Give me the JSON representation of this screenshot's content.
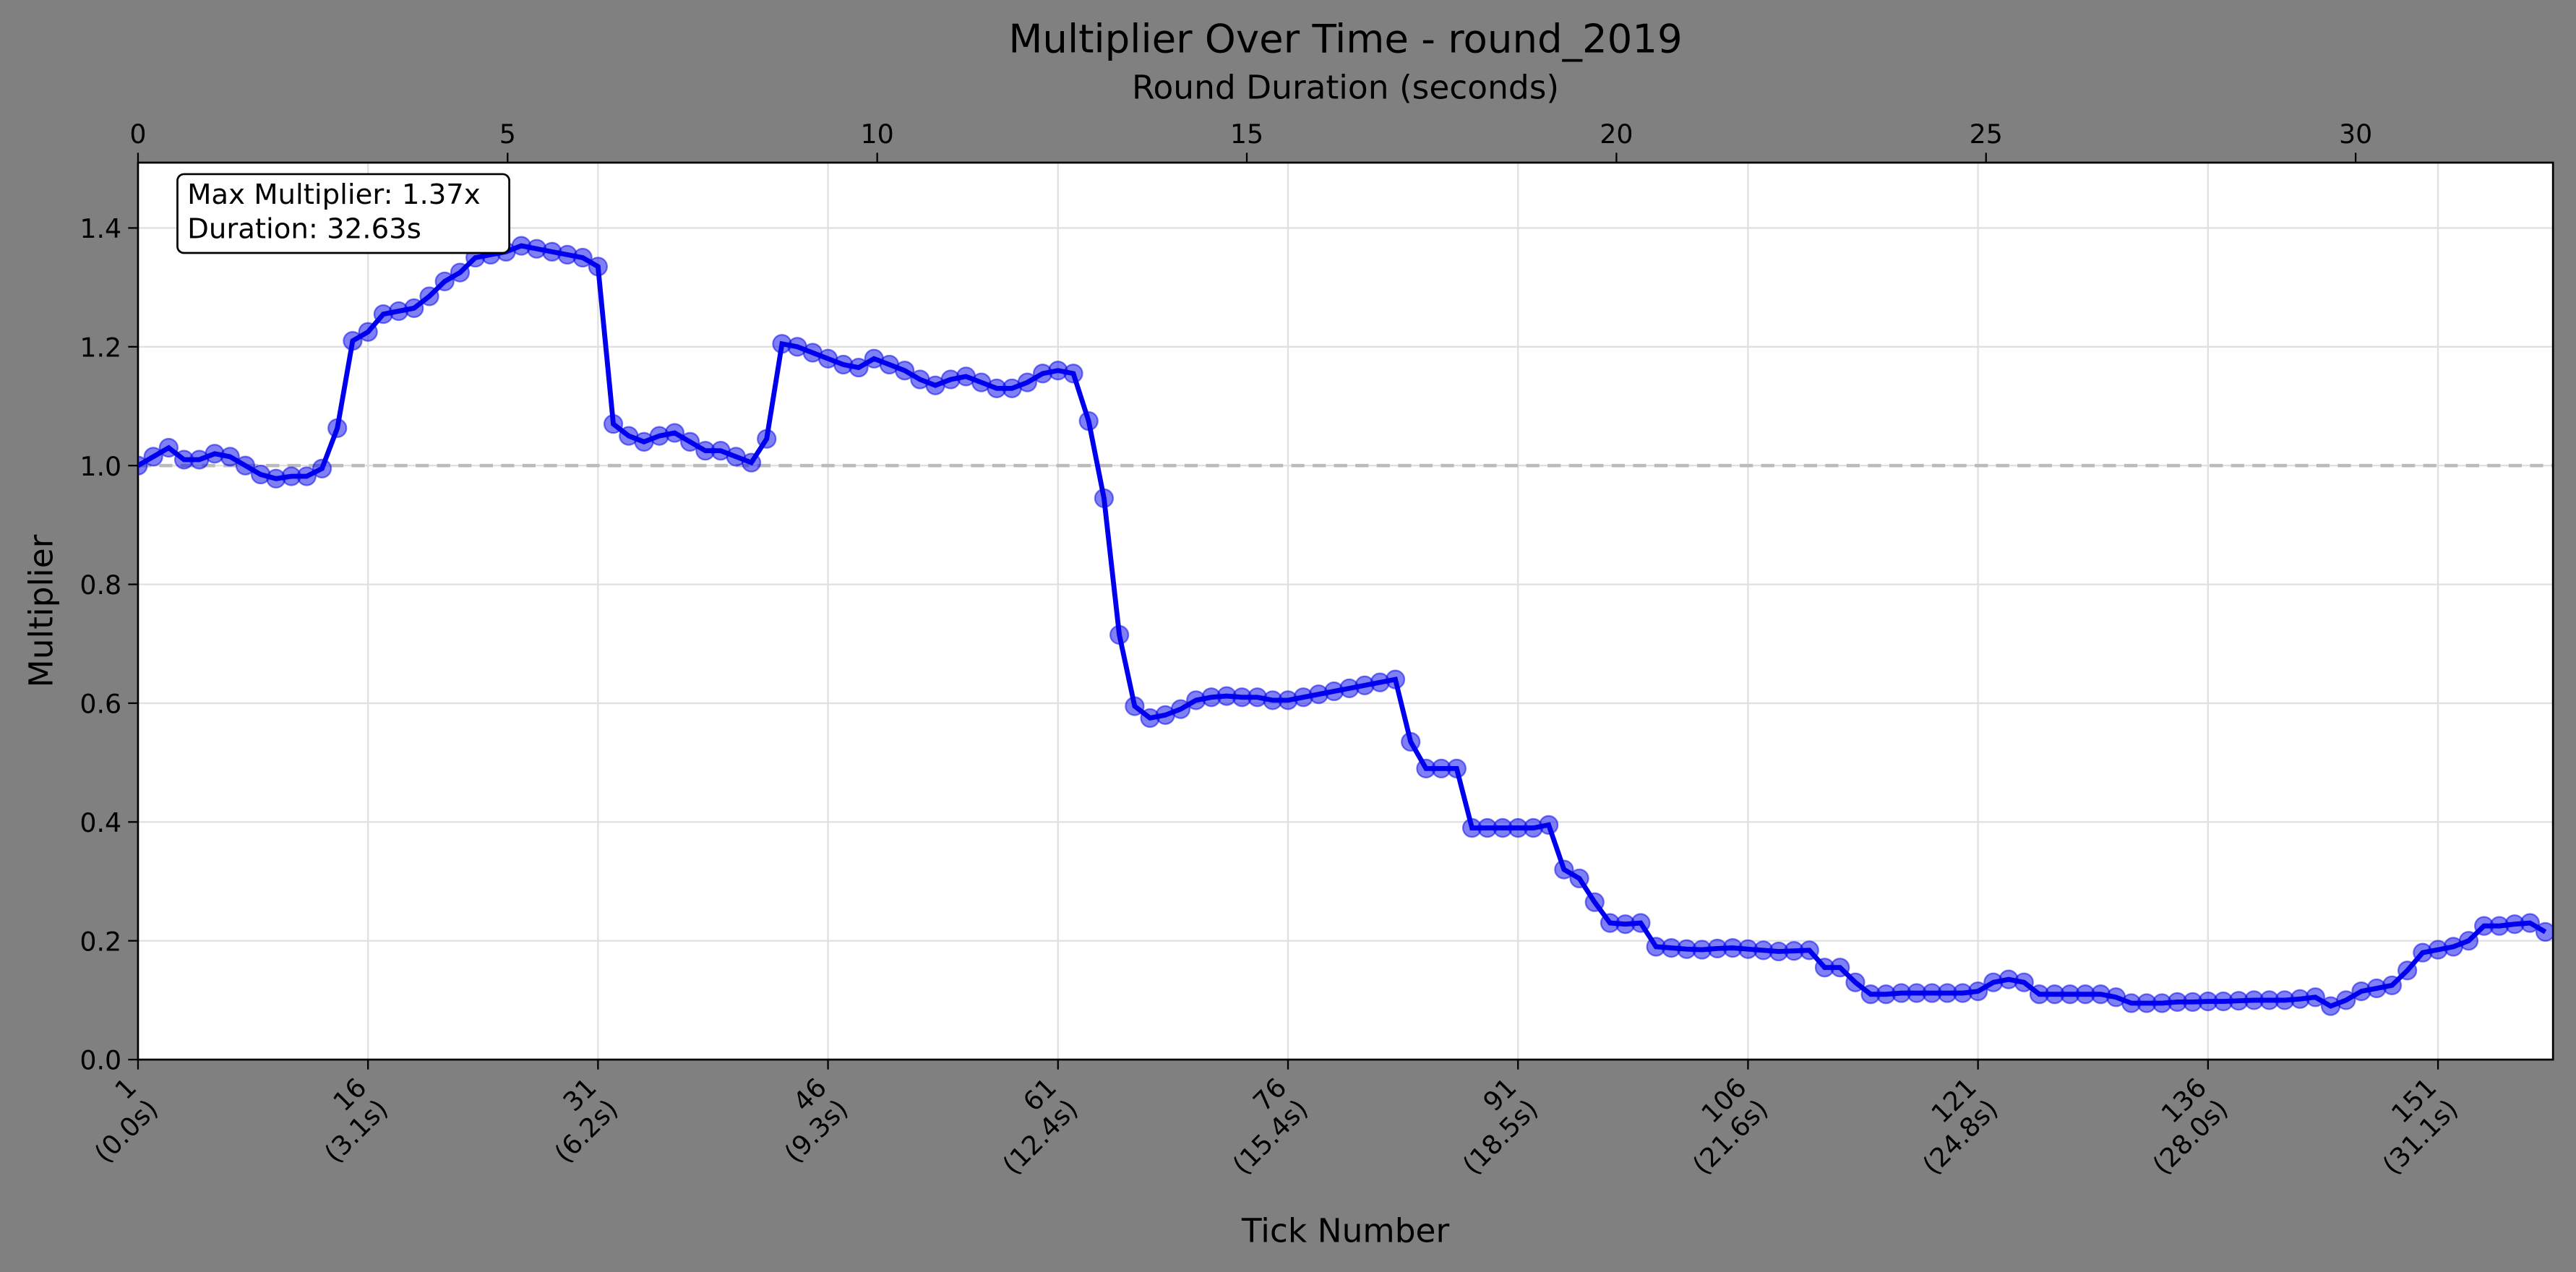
{
  "chart_data": {
    "type": "line",
    "title": "Multiplier Over Time - round_2019",
    "xlabel": "Tick Number",
    "ylabel": "Multiplier",
    "x2label": "Round Duration (seconds)",
    "annotation": [
      "Max Multiplier: 1.37x",
      "Duration: 32.63s"
    ],
    "color": "#0000ee",
    "reference_line": {
      "value": 1,
      "color": "#bbbbbb",
      "dashed": true
    },
    "grid": true,
    "x": [
      1,
      2,
      3,
      4,
      5,
      6,
      7,
      8,
      9,
      10,
      11,
      12,
      13,
      14,
      15,
      16,
      17,
      18,
      19,
      20,
      21,
      22,
      23,
      24,
      25,
      26,
      27,
      28,
      29,
      30,
      31,
      32,
      33,
      34,
      35,
      36,
      37,
      38,
      39,
      40,
      41,
      42,
      43,
      44,
      45,
      46,
      47,
      48,
      49,
      50,
      51,
      52,
      53,
      54,
      55,
      56,
      57,
      58,
      59,
      60,
      61,
      62,
      63,
      64,
      65,
      66,
      67,
      68,
      69,
      70,
      71,
      72,
      73,
      74,
      75,
      76,
      77,
      78,
      79,
      80,
      81,
      82,
      83,
      84,
      85,
      86,
      87,
      88,
      89,
      90,
      91,
      92,
      93,
      94,
      95,
      96,
      97,
      98,
      99,
      100,
      101,
      102,
      103,
      104,
      105,
      106,
      107,
      108,
      109,
      110,
      111,
      112,
      113,
      114,
      115,
      116,
      117,
      118,
      119,
      120,
      121,
      122,
      123,
      124,
      125,
      126,
      127,
      128,
      129,
      130,
      131,
      132,
      133,
      134,
      135,
      136,
      137,
      138,
      139,
      140,
      141,
      142,
      143,
      144,
      145,
      146,
      147,
      148,
      149,
      150,
      151,
      152,
      153,
      154,
      155,
      156,
      157,
      158
    ],
    "values": [
      1.0,
      1.015,
      1.03,
      1.01,
      1.01,
      1.02,
      1.015,
      1.0,
      0.985,
      0.978,
      0.982,
      0.982,
      0.995,
      1.063,
      1.21,
      1.225,
      1.255,
      1.26,
      1.265,
      1.285,
      1.31,
      1.325,
      1.35,
      1.355,
      1.36,
      1.37,
      1.365,
      1.36,
      1.355,
      1.35,
      1.335,
      1.07,
      1.05,
      1.04,
      1.05,
      1.055,
      1.04,
      1.025,
      1.025,
      1.015,
      1.005,
      1.045,
      1.205,
      1.2,
      1.19,
      1.18,
      1.17,
      1.165,
      1.18,
      1.17,
      1.16,
      1.145,
      1.135,
      1.145,
      1.15,
      1.14,
      1.13,
      1.13,
      1.14,
      1.155,
      1.16,
      1.155,
      1.075,
      0.945,
      0.715,
      0.595,
      0.575,
      0.58,
      0.59,
      0.605,
      0.61,
      0.612,
      0.61,
      0.61,
      0.605,
      0.605,
      0.61,
      0.615,
      0.62,
      0.625,
      0.63,
      0.635,
      0.64,
      0.535,
      0.49,
      0.49,
      0.49,
      0.39,
      0.39,
      0.39,
      0.39,
      0.39,
      0.395,
      0.32,
      0.305,
      0.265,
      0.23,
      0.228,
      0.23,
      0.19,
      0.188,
      0.186,
      0.185,
      0.187,
      0.188,
      0.186,
      0.184,
      0.182,
      0.183,
      0.184,
      0.155,
      0.155,
      0.13,
      0.11,
      0.11,
      0.112,
      0.112,
      0.112,
      0.112,
      0.112,
      0.115,
      0.13,
      0.135,
      0.13,
      0.11,
      0.11,
      0.11,
      0.11,
      0.11,
      0.105,
      0.095,
      0.095,
      0.095,
      0.097,
      0.097,
      0.098,
      0.098,
      0.099,
      0.1,
      0.1,
      0.1,
      0.102,
      0.105,
      0.09,
      0.1,
      0.115,
      0.12,
      0.125,
      0.15,
      0.18,
      0.185,
      0.19,
      0.2,
      0.225,
      0.225,
      0.228,
      0.23,
      0.215
    ],
    "xlim": [
      1,
      158.5
    ],
    "xticks": [
      {
        "value": 1,
        "label": "1\n(0.0s)"
      },
      {
        "value": 16,
        "label": "16\n(3.1s)"
      },
      {
        "value": 31,
        "label": "31\n(6.2s)"
      },
      {
        "value": 46,
        "label": "46\n(9.3s)"
      },
      {
        "value": 61,
        "label": "61\n(12.4s)"
      },
      {
        "value": 76,
        "label": "76\n(15.4s)"
      },
      {
        "value": 91,
        "label": "91\n(18.5s)"
      },
      {
        "value": 106,
        "label": "106\n(21.6s)"
      },
      {
        "value": 121,
        "label": "121\n(24.8s)"
      },
      {
        "value": 136,
        "label": "136\n(28.0s)"
      },
      {
        "value": 151,
        "label": "151\n(31.1s)"
      }
    ],
    "x2lim": [
      0,
      32.67
    ],
    "x2ticks": [
      0,
      5,
      10,
      15,
      20,
      25,
      30
    ],
    "ylim": [
      0,
      1.51
    ],
    "yticks": [
      {
        "value": 0,
        "label": "0.0"
      },
      0.2,
      0.4,
      0.6,
      0.8,
      {
        "value": 1,
        "label": "1.0"
      },
      1.2,
      1.4
    ]
  }
}
